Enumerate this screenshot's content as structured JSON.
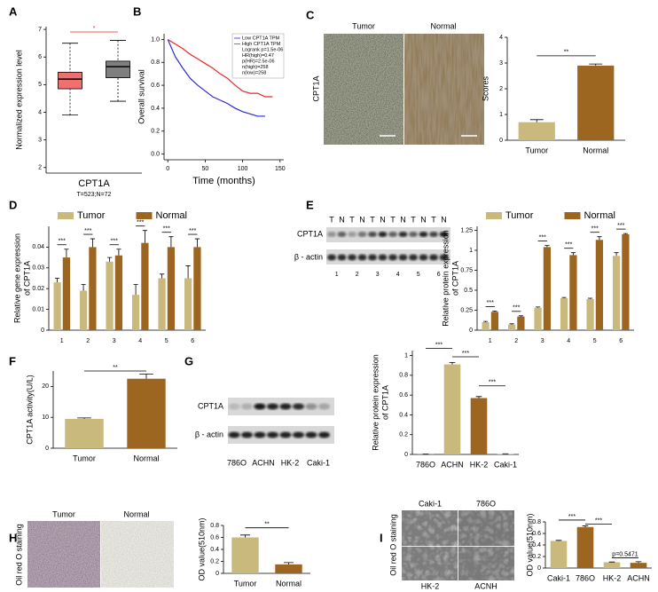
{
  "panel_labels": [
    "A",
    "B",
    "C",
    "D",
    "E",
    "F",
    "G",
    "H",
    "I"
  ],
  "chart_data": [
    {
      "type": "box",
      "ylabel": "Normalized expression level",
      "xlabel": "CPT1A",
      "note": "T=523;N=72",
      "categories": [
        null,
        null
      ],
      "boxes": [
        {
          "color": "#f07070",
          "whislo": 3.9,
          "q1": 4.85,
          "median": 5.2,
          "q3": 5.45,
          "whishi": 6.5
        },
        {
          "color": "#7f7f7f",
          "whislo": 4.4,
          "q1": 5.25,
          "median": 5.65,
          "q3": 5.85,
          "whishi": 6.6
        }
      ],
      "ylim": [
        1.8,
        7.1
      ],
      "yticks": [
        2,
        3,
        4,
        5,
        6,
        7
      ],
      "annotations": [
        "*"
      ]
    },
    {
      "type": "line",
      "xlabel": "Time (months)",
      "ylabel": "Overall survival",
      "x": [
        0,
        10,
        20,
        30,
        40,
        50,
        60,
        70,
        80,
        90,
        100,
        110,
        120,
        130,
        140
      ],
      "series": [
        {
          "name": "Low CPT1A TPM",
          "color": "#2b2bd6",
          "values": [
            1,
            0.85,
            0.75,
            0.66,
            0.6,
            0.55,
            0.5,
            0.47,
            0.44,
            0.4,
            0.37,
            0.35,
            0.33,
            0.33,
            null
          ]
        },
        {
          "name": "High CPT1A TPM",
          "color": "#e8262b",
          "values": [
            1,
            0.96,
            0.92,
            0.87,
            0.83,
            0.79,
            0.75,
            0.7,
            0.66,
            0.6,
            0.55,
            0.53,
            0.53,
            0.5,
            0.5
          ]
        }
      ],
      "xlim": [
        -5,
        155
      ],
      "xticks": [
        0,
        50,
        100,
        150
      ],
      "ylim": [
        -0.05,
        1.05
      ],
      "yticks": [
        {
          "value": 0,
          "label": "0.0"
        },
        {
          "value": 0.2,
          "label": "0.2"
        },
        {
          "value": 0.4,
          "label": "0.4"
        },
        {
          "value": 0.6,
          "label": "0.6"
        },
        {
          "value": 0.8,
          "label": "0.8"
        },
        {
          "value": 1,
          "label": "1.0"
        }
      ],
      "legend": "upper right",
      "legend_notes": [
        "Logrank p=1.5e-06",
        "HR(high)=0.47",
        "p(HR)=2.5e-06",
        "n(high)=258",
        "n(low)=258"
      ]
    },
    {
      "type": "bar",
      "ylabel": "Scores",
      "categories": [
        "Tumor",
        "Normal"
      ],
      "values": [
        0.7,
        2.9
      ],
      "errors": [
        0.1,
        0.06
      ],
      "colors": [
        "#c9b97c",
        "#9c6620"
      ],
      "ylim": [
        0,
        4
      ],
      "yticks": [
        0,
        1,
        2,
        3,
        4
      ],
      "annotations": [
        "**"
      ]
    },
    {
      "type": "bar",
      "ylabel": [
        "Relative gene expression",
        "of CPT1A"
      ],
      "categories": [
        "1",
        "2",
        "3",
        "4",
        "5",
        "6"
      ],
      "series": [
        {
          "name": "Tumor",
          "color": "#c9b97c",
          "values": [
            0.023,
            0.019,
            0.033,
            0.017,
            0.025,
            0.025
          ],
          "errors": [
            0.002,
            0.003,
            0.002,
            0.005,
            0.002,
            0.006
          ]
        },
        {
          "name": "Normal",
          "color": "#9c6620",
          "values": [
            0.035,
            0.04,
            0.036,
            0.042,
            0.04,
            0.04
          ],
          "errors": [
            0.004,
            0.004,
            0.003,
            0.006,
            0.005,
            0.004
          ]
        }
      ],
      "ylim": [
        0,
        0.05
      ],
      "yticks": [
        0,
        0.01,
        0.02,
        0.03,
        0.04
      ],
      "legend": "top",
      "annotations": [
        "***",
        "***",
        "***",
        "***",
        "***",
        "***"
      ]
    },
    {
      "type": "bar",
      "ylabel": [
        "Relative protein expression",
        "of CPT1A"
      ],
      "categories": [
        "1",
        "2",
        "3",
        "4",
        "5",
        "6"
      ],
      "series": [
        {
          "name": "Tumor",
          "color": "#c9b97c",
          "values": [
            0.1,
            0.07,
            0.28,
            0.4,
            0.39,
            0.93
          ],
          "errors": [
            0.01,
            0.01,
            0.01,
            0.01,
            0.01,
            0.04
          ]
        },
        {
          "name": "Normal",
          "color": "#9c6620",
          "values": [
            0.23,
            0.17,
            1.04,
            0.94,
            1.13,
            1.2
          ],
          "errors": [
            0.01,
            0.01,
            0.02,
            0.03,
            0.04,
            0.01
          ]
        }
      ],
      "ylim": [
        0,
        1.3
      ],
      "yticks": [
        0,
        0.25,
        0.5,
        0.75,
        1,
        1.25
      ],
      "legend": "top",
      "annotations": [
        "***",
        "***",
        "***",
        "***",
        "***",
        "***"
      ]
    },
    {
      "type": "bar",
      "ylabel": "CPT1A activity(U/L)",
      "categories": [
        "Tumor",
        "Normal"
      ],
      "values": [
        9.5,
        22.5
      ],
      "errors": [
        0.3,
        1.5
      ],
      "colors": [
        "#c9b97c",
        "#9c6620"
      ],
      "ylim": [
        0,
        25
      ],
      "yticks": [
        0,
        10,
        20
      ],
      "annotations": [
        "**"
      ]
    },
    {
      "type": "bar",
      "ylabel": [
        "Relative protein expression",
        "of CPT1A"
      ],
      "categories": [
        "786O",
        "ACHN",
        "HK-2",
        "Caki-1"
      ],
      "values": [
        0.002,
        0.91,
        0.57,
        0.005
      ],
      "errors": [
        0.001,
        0.02,
        0.015,
        0.002
      ],
      "colors": [
        "#c9b97c",
        "#c9b97c",
        "#9c6620",
        "#c9b97c"
      ],
      "ylim": [
        0,
        1.05
      ],
      "yticks": [
        0,
        0.2,
        0.4,
        0.6,
        0.8,
        1
      ],
      "annotations": [
        "***",
        "***",
        "***"
      ]
    },
    {
      "type": "bar",
      "ylabel": "OD value(510nm)",
      "categories": [
        "Tumor",
        "Normal"
      ],
      "values": [
        0.6,
        0.15
      ],
      "errors": [
        0.04,
        0.03
      ],
      "colors": [
        "#c9b97c",
        "#9c6620"
      ],
      "ylim": [
        0,
        0.8
      ],
      "yticks": [
        0,
        0.2,
        0.4,
        0.6,
        0.8
      ],
      "annotations": [
        "**"
      ]
    },
    {
      "type": "bar",
      "ylabel": "OD value(510nm)",
      "categories": [
        "Caki-1",
        "786O",
        "HK-2",
        "ACHN"
      ],
      "values": [
        0.47,
        0.71,
        0.1,
        0.09
      ],
      "errors": [
        0.01,
        0.02,
        0.005,
        0.02
      ],
      "colors": [
        "#c9b97c",
        "#9c6620",
        "#c9b97c",
        "#9c6620"
      ],
      "ylim": [
        0,
        0.8
      ],
      "yticks": [
        0,
        0.2,
        0.4,
        0.6,
        0.8
      ],
      "annotations": [
        "***",
        "***",
        "p=0.5471"
      ]
    }
  ],
  "figures": {
    "C": {
      "column_labels": [
        "Tumor",
        "Normal"
      ],
      "row_label": "CPT1A"
    },
    "E": {
      "lanes": [
        "T",
        "N",
        "T",
        "N",
        "T",
        "N",
        "T",
        "N",
        "T",
        "N",
        "T",
        "N"
      ],
      "rows": [
        "CPT1A",
        "β - actin"
      ],
      "samples": [
        "1",
        "2",
        "3",
        "4",
        "5",
        "6"
      ]
    },
    "G": {
      "lanes": [
        "786O",
        "ACHN",
        "HK-2",
        "Caki-1"
      ],
      "rows": [
        "CPT1A",
        "β - actin"
      ]
    },
    "H": {
      "column_labels": [
        "Tumor",
        "Normal"
      ],
      "row_label": "Oil red O staining"
    },
    "I": {
      "cell_labels": [
        "Caki-1",
        "786O",
        "HK-2",
        "ACNH"
      ],
      "row_label": "Oil red O staining"
    }
  }
}
